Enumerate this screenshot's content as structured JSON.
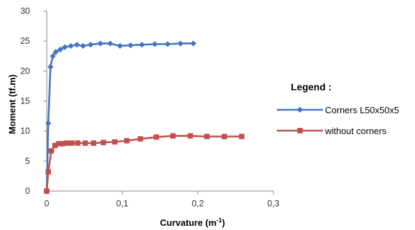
{
  "chart_data": {
    "type": "line",
    "xlabel": "Curvature (m",
    "xlabel_sup": "-1",
    "xlabel_close": ")",
    "ylabel": "Moment (tf.m)",
    "xlim": [
      0,
      0.3
    ],
    "ylim": [
      0,
      30
    ],
    "x_ticks": [
      0,
      0.1,
      0.2,
      0.3
    ],
    "x_tick_labels": [
      "0",
      "0,1",
      "0,2",
      "0,3"
    ],
    "y_ticks": [
      0,
      5,
      10,
      15,
      20,
      25,
      30
    ],
    "y_tick_labels": [
      "0",
      "5",
      "10",
      "15",
      "20",
      "25",
      "30"
    ],
    "grid": false,
    "legend_title": "Legend :",
    "legend_position": "right",
    "series": [
      {
        "name": "Corners L50x50x5",
        "color": "#4472C4",
        "marker": "diamond",
        "x": [
          0,
          0.002,
          0.005,
          0.008,
          0.012,
          0.018,
          0.024,
          0.032,
          0.04,
          0.048,
          0.058,
          0.071,
          0.084,
          0.097,
          0.111,
          0.126,
          0.143,
          0.16,
          0.177,
          0.194
        ],
        "y": [
          0,
          11.3,
          20.7,
          22.5,
          23.2,
          23.6,
          24.0,
          24.2,
          24.4,
          24.2,
          24.4,
          24.6,
          24.6,
          24.2,
          24.3,
          24.4,
          24.5,
          24.5,
          24.6,
          24.6
        ]
      },
      {
        "name": "without corners",
        "color": "#C0504D",
        "marker": "square",
        "x": [
          0,
          0.002,
          0.006,
          0.011,
          0.016,
          0.021,
          0.026,
          0.033,
          0.041,
          0.051,
          0.062,
          0.075,
          0.09,
          0.106,
          0.124,
          0.145,
          0.167,
          0.19,
          0.212,
          0.235,
          0.258
        ],
        "y": [
          0,
          3.2,
          6.7,
          7.6,
          7.9,
          7.9,
          8.0,
          8.0,
          8.0,
          8.0,
          8.0,
          8.1,
          8.2,
          8.4,
          8.7,
          9.0,
          9.2,
          9.2,
          9.1,
          9.1,
          9.1
        ]
      }
    ]
  }
}
